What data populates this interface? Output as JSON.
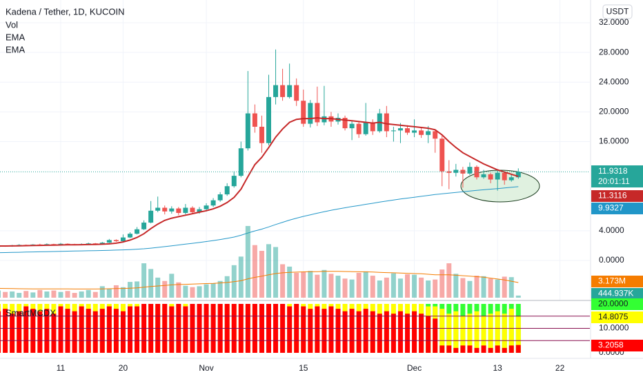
{
  "header": {
    "title": "Kadena / Tether, 1D, KUCOIN",
    "currency": "USDT"
  },
  "chart_data": [
    {
      "type": "candlestick",
      "x": [
        "Oct 2",
        "Oct 3",
        "Oct 4",
        "Oct 5",
        "Oct 6",
        "Oct 7",
        "Oct 8",
        "Oct 9",
        "Oct 10",
        "Oct 11",
        "Oct 12",
        "Oct 13",
        "Oct 14",
        "Oct 15",
        "Oct 16",
        "Oct 17",
        "Oct 18",
        "Oct 19",
        "Oct 20",
        "Oct 21",
        "Oct 22",
        "Oct 23",
        "Oct 24",
        "Oct 25",
        "Oct 26",
        "Oct 27",
        "Oct 28",
        "Oct 29",
        "Oct 30",
        "Oct 31",
        "Nov 1",
        "Nov 2",
        "Nov 3",
        "Nov 4",
        "Nov 5",
        "Nov 6",
        "Nov 7",
        "Nov 8",
        "Nov 9",
        "Nov 10",
        "Nov 11",
        "Nov 12",
        "Nov 13",
        "Nov 14",
        "Nov 15",
        "Nov 16",
        "Nov 17",
        "Nov 18",
        "Nov 19",
        "Nov 20",
        "Nov 21",
        "Nov 22",
        "Nov 23",
        "Nov 24",
        "Nov 25",
        "Nov 26",
        "Nov 27",
        "Nov 28",
        "Nov 29",
        "Nov 30",
        "Dec 1",
        "Dec 2",
        "Dec 3",
        "Dec 4",
        "Dec 5",
        "Dec 6",
        "Dec 7",
        "Dec 8",
        "Dec 9",
        "Dec 10",
        "Dec 11",
        "Dec 12",
        "Dec 13",
        "Dec 14",
        "Dec 15",
        "Dec 16"
      ],
      "open": [
        1.85,
        1.95,
        1.9,
        2.05,
        2.1,
        2.0,
        2.15,
        2.1,
        2.2,
        2.15,
        2.25,
        2.2,
        2.1,
        2.2,
        2.3,
        2.25,
        2.4,
        2.75,
        2.6,
        3.1,
        3.6,
        4.2,
        5.1,
        6.7,
        7.1,
        6.6,
        7.0,
        6.4,
        7.1,
        6.5,
        6.9,
        7.4,
        8.1,
        8.9,
        10.0,
        11.4,
        15.1,
        19.8,
        18.0,
        15.8,
        22.0,
        23.6,
        22.0,
        23.6,
        21.5,
        18.4,
        21.2,
        18.6,
        19.4,
        18.7,
        19.2,
        17.8,
        18.4,
        17.0,
        18.6,
        17.4,
        19.8,
        17.4,
        17.5,
        17.8,
        17.2,
        17.5,
        16.9,
        17.4,
        16.4,
        12.0,
        11.8,
        12.2,
        11.7,
        12.6,
        11.2,
        11.6,
        10.9,
        11.8,
        10.8,
        11.2
      ],
      "close": [
        1.95,
        1.9,
        2.05,
        2.1,
        2.0,
        2.15,
        2.1,
        2.2,
        2.15,
        2.25,
        2.2,
        2.1,
        2.2,
        2.3,
        2.25,
        2.4,
        2.75,
        2.6,
        3.1,
        3.6,
        4.2,
        5.1,
        6.7,
        7.1,
        6.6,
        7.0,
        6.4,
        7.1,
        6.5,
        6.9,
        7.4,
        8.1,
        8.9,
        10.0,
        11.4,
        15.1,
        19.8,
        18.0,
        15.8,
        22.0,
        23.6,
        22.0,
        23.6,
        21.5,
        18.4,
        21.2,
        18.6,
        19.4,
        18.7,
        19.2,
        17.8,
        18.4,
        17.0,
        18.6,
        17.4,
        19.8,
        17.4,
        17.5,
        17.8,
        17.2,
        17.5,
        16.9,
        17.4,
        16.4,
        12.0,
        11.8,
        12.2,
        11.7,
        12.6,
        11.2,
        11.6,
        10.9,
        11.8,
        10.8,
        11.2,
        11.9318
      ],
      "high": [
        2.0,
        2.0,
        2.1,
        2.2,
        2.15,
        2.2,
        2.25,
        2.3,
        2.25,
        2.35,
        2.3,
        2.25,
        2.3,
        2.4,
        2.35,
        2.5,
        2.9,
        2.85,
        3.5,
        3.8,
        4.5,
        5.4,
        8.0,
        8.6,
        7.4,
        7.3,
        7.2,
        7.6,
        7.3,
        7.2,
        7.7,
        8.4,
        9.2,
        10.4,
        12.0,
        16.0,
        25.5,
        21.0,
        19.5,
        25.0,
        28.4,
        25.8,
        26.5,
        24.5,
        23.0,
        21.6,
        23.4,
        23.5,
        20.0,
        19.8,
        19.5,
        18.8,
        18.6,
        21.2,
        19.0,
        20.4,
        20.8,
        18.0,
        18.5,
        18.2,
        19.0,
        18.0,
        18.1,
        17.6,
        16.8,
        13.5,
        13.0,
        12.6,
        13.2,
        12.8,
        12.2,
        11.8,
        12.1,
        12.0,
        11.6,
        12.4
      ],
      "low": [
        1.8,
        1.85,
        1.85,
        2.0,
        1.95,
        1.95,
        2.05,
        2.05,
        2.1,
        2.1,
        2.1,
        2.05,
        2.05,
        2.15,
        2.2,
        2.2,
        2.35,
        2.5,
        2.55,
        3.0,
        3.5,
        4.1,
        5.0,
        6.5,
        6.2,
        6.3,
        6.1,
        6.2,
        6.3,
        6.3,
        6.6,
        7.2,
        7.9,
        8.7,
        9.8,
        11.2,
        14.8,
        17.2,
        14.5,
        15.5,
        21.0,
        21.5,
        21.8,
        20.8,
        18.0,
        17.9,
        18.1,
        18.2,
        18.0,
        18.3,
        17.5,
        16.2,
        16.5,
        16.8,
        16.9,
        17.2,
        16.6,
        16.0,
        15.8,
        16.9,
        16.6,
        16.5,
        15.8,
        14.5,
        10.0,
        9.6,
        11.3,
        9.8,
        11.5,
        10.9,
        11.0,
        10.4,
        9.4,
        10.2,
        10.6,
        11.0
      ],
      "up_color": "#26a69a",
      "down_color": "#ef5350",
      "countdown": "20:01:11",
      "series": [
        {
          "name": "EMA",
          "color": "#c62828",
          "values": [
            1.95,
            1.95,
            1.96,
            1.98,
            2.0,
            2.01,
            2.03,
            2.05,
            2.07,
            2.09,
            2.11,
            2.12,
            2.13,
            2.14,
            2.16,
            2.19,
            2.24,
            2.33,
            2.5,
            2.75,
            3.1,
            3.6,
            4.3,
            4.9,
            5.4,
            5.7,
            5.9,
            6.1,
            6.3,
            6.5,
            6.7,
            6.95,
            7.3,
            7.8,
            8.5,
            9.6,
            11.3,
            12.9,
            13.9,
            15.2,
            16.6,
            17.7,
            18.6,
            19.0,
            19.1,
            19.1,
            19.2,
            19.1,
            19.1,
            19.0,
            18.9,
            18.8,
            18.7,
            18.6,
            18.5,
            18.6,
            18.4,
            18.3,
            18.2,
            18.1,
            18.0,
            17.9,
            17.8,
            17.6,
            16.9,
            16.0,
            15.2,
            14.5,
            14.0,
            13.5,
            13.0,
            12.6,
            12.2,
            11.9,
            11.6,
            11.3116
          ]
        },
        {
          "name": "EMA",
          "color": "#2196c8",
          "values": [
            1.05,
            1.07,
            1.09,
            1.11,
            1.13,
            1.15,
            1.17,
            1.19,
            1.21,
            1.23,
            1.25,
            1.27,
            1.29,
            1.31,
            1.33,
            1.35,
            1.37,
            1.4,
            1.43,
            1.47,
            1.52,
            1.58,
            1.66,
            1.76,
            1.87,
            1.98,
            2.09,
            2.2,
            2.31,
            2.42,
            2.55,
            2.68,
            2.82,
            2.98,
            3.16,
            3.4,
            3.7,
            3.98,
            4.22,
            4.52,
            4.84,
            5.14,
            5.44,
            5.7,
            5.94,
            6.14,
            6.36,
            6.56,
            6.76,
            6.94,
            7.1,
            7.26,
            7.4,
            7.56,
            7.7,
            7.86,
            8.0,
            8.14,
            8.28,
            8.4,
            8.52,
            8.64,
            8.76,
            8.88,
            8.98,
            9.07,
            9.16,
            9.25,
            9.34,
            9.43,
            9.52,
            9.6,
            9.68,
            9.76,
            9.85,
            9.9327
          ]
        }
      ],
      "ylim": [
        -5.47,
        35.06
      ],
      "yticks": [
        {
          "value": 32,
          "label": "32.0000"
        },
        {
          "value": 28,
          "label": "28.0000"
        },
        {
          "value": 24,
          "label": "24.0000"
        },
        {
          "value": 20,
          "label": "20.0000"
        },
        {
          "value": 16,
          "label": "16.0000"
        },
        {
          "value": 4,
          "label": "4.0000"
        },
        {
          "value": 0,
          "label": "0.0000"
        }
      ],
      "xticks": [
        {
          "value": "Oct 11",
          "label": "11"
        },
        {
          "value": "Oct 20",
          "label": "20"
        },
        {
          "value": "Nov 1",
          "label": "Nov"
        },
        {
          "value": "Nov 15",
          "label": "15"
        },
        {
          "value": "Dec 1",
          "label": "Dec"
        },
        {
          "value": "Dec 13",
          "label": "13"
        },
        {
          "value": "Dec 22",
          "label": "22"
        }
      ],
      "grid": true
    },
    {
      "type": "bar",
      "title": "Vol",
      "values": [
        1.5,
        1.2,
        1.3,
        1.0,
        1.4,
        1.1,
        1.6,
        1.3,
        1.5,
        1.2,
        1.4,
        1.0,
        1.3,
        1.6,
        1.2,
        2.4,
        1.8,
        2.6,
        2.2,
        3.3,
        3.4,
        7.2,
        6.0,
        4.2,
        3.5,
        5.0,
        3.2,
        2.5,
        2.2,
        2.4,
        2.8,
        3.0,
        3.5,
        4.5,
        6.8,
        8.6,
        15.0,
        11.0,
        9.8,
        11.2,
        10.6,
        7.0,
        6.5,
        5.2,
        5.4,
        5.6,
        4.8,
        5.8,
        5.0,
        4.6,
        4.0,
        3.8,
        5.2,
        5.5,
        4.6,
        3.6,
        4.2,
        5.1,
        4.0,
        4.9,
        4.8,
        4.2,
        3.6,
        3.8,
        5.9,
        7.2,
        5.0,
        4.1,
        3.5,
        4.6,
        4.5,
        4.0,
        3.8,
        4.4,
        4.3,
        0.444937
      ],
      "last_value_label": "444.937K",
      "ma": {
        "color": "#f57c00",
        "last_value_label": "3.173M",
        "values": [
          1.95,
          1.93,
          1.9,
          1.88,
          1.86,
          1.85,
          1.85,
          1.84,
          1.84,
          1.83,
          1.83,
          1.82,
          1.82,
          1.82,
          1.82,
          1.85,
          1.87,
          1.9,
          1.93,
          1.98,
          2.05,
          2.2,
          2.35,
          2.45,
          2.55,
          2.68,
          2.75,
          2.8,
          2.85,
          2.9,
          2.95,
          3.0,
          3.08,
          3.18,
          3.35,
          3.55,
          3.95,
          4.25,
          4.5,
          4.8,
          5.05,
          5.2,
          5.3,
          5.35,
          5.4,
          5.45,
          5.45,
          5.5,
          5.5,
          5.5,
          5.48,
          5.45,
          5.42,
          5.4,
          5.36,
          5.3,
          5.25,
          5.2,
          5.15,
          5.1,
          5.05,
          5.0,
          4.9,
          4.8,
          4.8,
          4.8,
          4.7,
          4.6,
          4.5,
          4.4,
          4.3,
          4.1,
          3.9,
          3.7,
          3.45,
          3.173
        ]
      },
      "ylim": [
        0,
        17.3
      ]
    },
    {
      "type": "bar",
      "title": "SmartMCDX",
      "series": [
        {
          "color": "#33ff33",
          "last_value_label": "20.0000",
          "values": [
            null,
            null,
            null,
            null,
            null,
            null,
            null,
            null,
            null,
            null,
            null,
            null,
            null,
            null,
            null,
            null,
            null,
            null,
            null,
            null,
            null,
            null,
            null,
            null,
            null,
            null,
            null,
            null,
            null,
            null,
            null,
            null,
            null,
            null,
            null,
            null,
            null,
            null,
            null,
            null,
            null,
            null,
            null,
            null,
            null,
            null,
            null,
            null,
            null,
            null,
            null,
            null,
            null,
            null,
            null,
            null,
            null,
            null,
            null,
            null,
            null,
            20,
            20,
            20,
            20,
            20,
            20,
            20,
            20,
            20,
            20,
            20,
            20,
            20,
            20,
            20
          ]
        },
        {
          "color": "#ffff00",
          "values": [
            20,
            20,
            20,
            20,
            20,
            20,
            20,
            20,
            20,
            20,
            20,
            20,
            20,
            20,
            20,
            20,
            20,
            20,
            20,
            20,
            20,
            20,
            20,
            20,
            20,
            20,
            20,
            20,
            20,
            20,
            20,
            20,
            20,
            20,
            20,
            20,
            20,
            20,
            20,
            20,
            20,
            20,
            20,
            20,
            20,
            20,
            20,
            20,
            20,
            20,
            20,
            20,
            20,
            20,
            20,
            20,
            20,
            20,
            20,
            20,
            20,
            20,
            19,
            19,
            18,
            16,
            17,
            15,
            16,
            17,
            15,
            16,
            17,
            16,
            18,
            14.8075
          ]
        },
        {
          "color": "#ff0000",
          "values": [
            17,
            18,
            16,
            17,
            19,
            18,
            17,
            18,
            16,
            19,
            18,
            17,
            19,
            18,
            17,
            18,
            19,
            18,
            17,
            19,
            19,
            20,
            20,
            20,
            20,
            19,
            20,
            19,
            20,
            20,
            20,
            20,
            20,
            20,
            20,
            20,
            20,
            20,
            20,
            20,
            20,
            20,
            19,
            20,
            19,
            18,
            19,
            18,
            19,
            18,
            17,
            18,
            17,
            18,
            17,
            16,
            17,
            16,
            17,
            16,
            17,
            16,
            15,
            14,
            3,
            3,
            2,
            3,
            3,
            2,
            3,
            2,
            3,
            2,
            3,
            3.2058
          ]
        }
      ],
      "levels": [
        15,
        10,
        5
      ],
      "level_color": "#880e4f",
      "ylim": [
        -2.25,
        21.13
      ],
      "yticks": [
        {
          "value": 10,
          "label": "10.0000"
        },
        {
          "value": 0,
          "label": "0.0000"
        }
      ]
    }
  ]
}
